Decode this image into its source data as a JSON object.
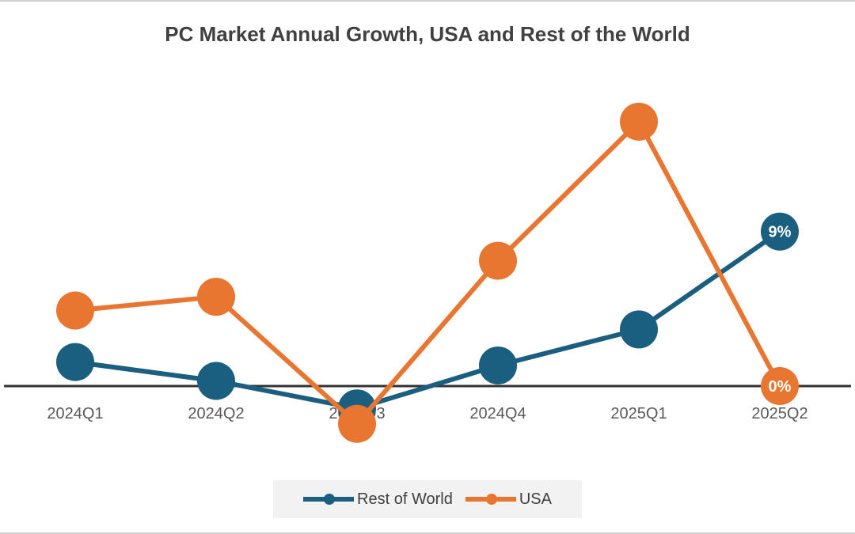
{
  "chart_data": {
    "type": "line",
    "title": "PC Market Annual Growth, USA and Rest of the World",
    "categories": [
      "2024Q1",
      "2024Q2",
      "2024Q3",
      "2024Q4",
      "2025Q1",
      "2025Q2"
    ],
    "series": [
      {
        "name": "Rest of World",
        "color": "#1a5e80",
        "values": [
          1.4,
          0.3,
          -1.3,
          1.2,
          3.3,
          9
        ],
        "data_labels": {
          "5": "9%"
        }
      },
      {
        "name": "USA",
        "color": "#e87530",
        "values": [
          4.4,
          5.2,
          -2.2,
          7.3,
          15.4,
          0
        ],
        "data_labels": {
          "5": "0%"
        }
      }
    ],
    "xlabel": "",
    "ylabel": "",
    "unit": "%",
    "y_axis_visible": false,
    "grid": false,
    "legend": "bottom"
  }
}
